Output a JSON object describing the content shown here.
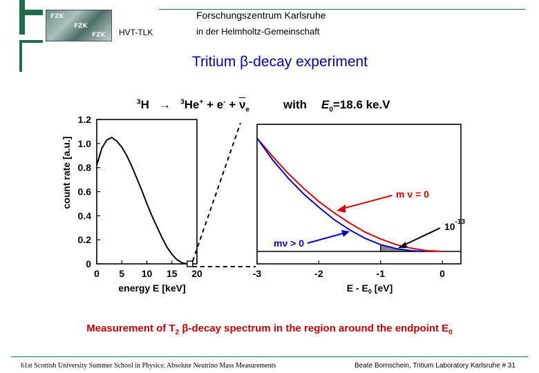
{
  "header": {
    "unit": "HVT-TLK",
    "org_line1": "Forschungszentrum Karlsruhe",
    "org_line2": "in der Helmholtz-Gemeinschaft",
    "logo_text": "FZK"
  },
  "slide": {
    "title": "Tritium β-decay experiment",
    "reaction": {
      "parent": "H",
      "parent_mass": "3",
      "arrow": "→",
      "product": "He",
      "product_mass": "3",
      "product_charge": "+",
      "plus1": "+",
      "electron": "e",
      "electron_charge": "-",
      "plus2": "+",
      "neutrino": "ν",
      "neutrino_sub": "e"
    },
    "with_word": "with",
    "endpoint_label": "E",
    "endpoint_sub": "0",
    "endpoint_value": "=18.6 ke.V",
    "caption_main": "Measurement of T",
    "caption_sub": "2",
    "caption_rest": " β-decay spectrum in the region around the endpoint E",
    "caption_end_sub": "0"
  },
  "footer": {
    "left": "61st Scottish University Summer School in Physics: Absolute Neutrino Mass Measurements",
    "right": "Beate Bornschein, Tritium Laboratory Karlsruhe  # 31"
  },
  "chart_data": [
    {
      "type": "line",
      "xlabel": "energy E   [keV]",
      "ylabel": "count  rate  [a.u.]",
      "xlim": [
        0,
        20
      ],
      "ylim": [
        0,
        1.2
      ],
      "xticks": [
        "0",
        "5",
        "10",
        "15",
        "20"
      ],
      "yticks": [
        "0",
        "0.2",
        "0.4",
        "0.6",
        "0.8",
        "1.0",
        "1.2"
      ],
      "series": [
        {
          "color": "#000000",
          "style": "solid",
          "x": [
            0,
            1,
            2,
            3,
            4,
            5,
            6,
            7,
            8,
            9,
            10,
            11,
            12,
            13,
            14,
            15,
            16,
            17,
            18,
            18.6
          ],
          "y": [
            0.82,
            0.96,
            1.03,
            1.05,
            1.02,
            0.97,
            0.9,
            0.81,
            0.71,
            0.61,
            0.5,
            0.4,
            0.31,
            0.22,
            0.14,
            0.08,
            0.035,
            0.01,
            0.0,
            0.0
          ]
        }
      ],
      "endpoint_box_x": 18.6
    },
    {
      "type": "line",
      "xlabel": "E - E₀  [eV]",
      "xlim": [
        -3,
        0.3
      ],
      "xticks": [
        "-3",
        "-2",
        "-1",
        "0"
      ],
      "series": [
        {
          "name": "m ν = 0",
          "color": "#dd0000",
          "x": [
            -3.0,
            -2.75,
            -2.5,
            -2.25,
            -2.0,
            -1.75,
            -1.5,
            -1.25,
            -1.0,
            -0.75,
            -0.5,
            -0.25,
            0.0
          ],
          "y": [
            1.0,
            0.84,
            0.69,
            0.56,
            0.44,
            0.34,
            0.25,
            0.17,
            0.11,
            0.06,
            0.028,
            0.007,
            0.0
          ]
        },
        {
          "name": "mν > 0",
          "color": "#0000cc",
          "x": [
            -3.0,
            -2.75,
            -2.5,
            -2.25,
            -2.0,
            -1.75,
            -1.5,
            -1.25,
            -1.0,
            -0.75,
            -0.5,
            -0.3
          ],
          "y": [
            1.0,
            0.81,
            0.65,
            0.51,
            0.39,
            0.28,
            0.19,
            0.115,
            0.06,
            0.025,
            0.006,
            0.0
          ]
        }
      ],
      "annotations": [
        {
          "text": "m ν = 0",
          "color": "#dd0000"
        },
        {
          "text": "mν > 0",
          "color": "#0000cc"
        },
        {
          "text": "10",
          "sup": "-13",
          "color": "#000000"
        }
      ],
      "shaded_region_x": [
        -1.0,
        -0.3
      ]
    }
  ]
}
